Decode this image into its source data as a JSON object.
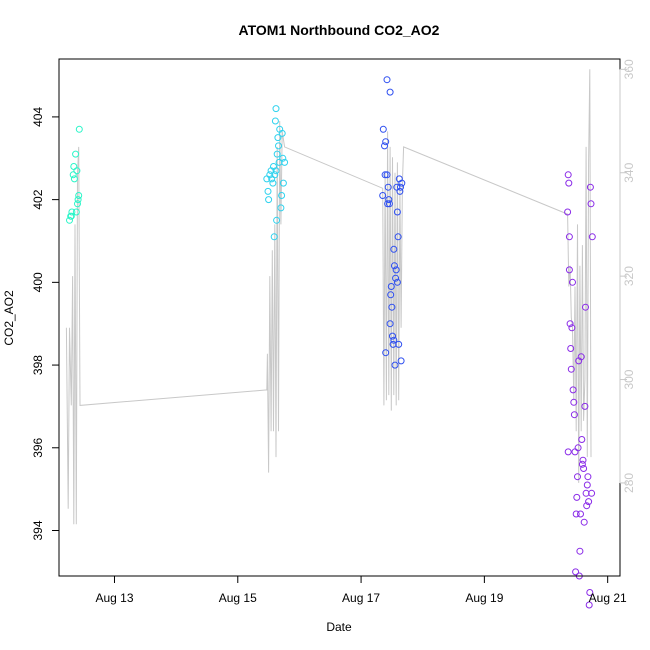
{
  "chart_data": {
    "type": "scatter",
    "title": "ATOM1 Northbound CO2_AO2",
    "xlabel": "Date",
    "ylabel": "CO2_AO2",
    "x_unit": "days (August, day-of-month)",
    "xlim": [
      12.1,
      21.2
    ],
    "x_ticks": [
      {
        "value": 13,
        "label": "Aug 13"
      },
      {
        "value": 15,
        "label": "Aug 15"
      },
      {
        "value": 17,
        "label": "Aug 17"
      },
      {
        "value": 19,
        "label": "Aug 19"
      },
      {
        "value": 21,
        "label": "Aug 21"
      }
    ],
    "ylim": [
      392.9,
      405.4
    ],
    "y_ticks": [
      394,
      396,
      398,
      400,
      402,
      404
    ],
    "y2lim": [
      262,
      362
    ],
    "y2_ticks": [
      280,
      300,
      320,
      340,
      360
    ],
    "grid": false,
    "colors": {
      "series_aug12": "#2af5c8",
      "series_aug15": "#2fd2ee",
      "series_aug17": "#2e4ff0",
      "series_aug20": "#8a2be8",
      "line": "#c8c8c8"
    },
    "series": [
      {
        "points": [
          [
            12.27,
            401.5
          ],
          [
            12.29,
            401.6
          ],
          [
            12.31,
            401.7
          ],
          [
            12.33,
            402.6
          ],
          [
            12.34,
            402.8
          ],
          [
            12.35,
            402.5
          ],
          [
            12.37,
            403.1
          ],
          [
            12.38,
            401.7
          ],
          [
            12.4,
            401.9
          ],
          [
            12.41,
            402.0
          ],
          [
            12.42,
            402.1
          ],
          [
            12.43,
            403.7
          ],
          [
            12.39,
            402.7
          ],
          [
            12.3,
            401.6
          ]
        ]
      },
      {
        "points": [
          [
            15.47,
            402.5
          ],
          [
            15.49,
            402.2
          ],
          [
            15.5,
            402.0
          ],
          [
            15.52,
            402.6
          ],
          [
            15.54,
            402.7
          ],
          [
            15.55,
            402.5
          ],
          [
            15.57,
            402.4
          ],
          [
            15.58,
            402.8
          ],
          [
            15.59,
            401.1
          ],
          [
            15.6,
            402.6
          ],
          [
            15.62,
            402.7
          ],
          [
            15.63,
            401.5
          ],
          [
            15.64,
            403.1
          ],
          [
            15.65,
            403.5
          ],
          [
            15.67,
            402.9
          ],
          [
            15.68,
            403.7
          ],
          [
            15.7,
            401.8
          ],
          [
            15.71,
            402.1
          ],
          [
            15.72,
            403.6
          ],
          [
            15.73,
            403.0
          ],
          [
            15.74,
            402.4
          ],
          [
            15.76,
            402.9
          ],
          [
            15.61,
            403.9
          ],
          [
            15.62,
            404.2
          ],
          [
            15.66,
            403.3
          ]
        ]
      },
      {
        "points": [
          [
            17.35,
            402.1
          ],
          [
            17.38,
            403.3
          ],
          [
            17.39,
            402.6
          ],
          [
            17.4,
            403.4
          ],
          [
            17.42,
            404.9
          ],
          [
            17.44,
            402.3
          ],
          [
            17.45,
            402.0
          ],
          [
            17.46,
            401.9
          ],
          [
            17.47,
            404.6
          ],
          [
            17.48,
            399.7
          ],
          [
            17.5,
            399.4
          ],
          [
            17.51,
            398.7
          ],
          [
            17.52,
            398.5
          ],
          [
            17.53,
            398.6
          ],
          [
            17.54,
            400.4
          ],
          [
            17.55,
            398.0
          ],
          [
            17.56,
            400.1
          ],
          [
            17.57,
            400.3
          ],
          [
            17.58,
            402.3
          ],
          [
            17.59,
            401.7
          ],
          [
            17.6,
            401.1
          ],
          [
            17.61,
            398.5
          ],
          [
            17.62,
            402.5
          ],
          [
            17.63,
            402.2
          ],
          [
            17.64,
            402.3
          ],
          [
            17.65,
            398.1
          ],
          [
            17.66,
            402.4
          ],
          [
            17.4,
            398.3
          ],
          [
            17.43,
            401.9
          ],
          [
            17.49,
            399.9
          ],
          [
            17.36,
            403.7
          ],
          [
            17.42,
            402.6
          ],
          [
            17.53,
            400.8
          ],
          [
            17.59,
            400.0
          ],
          [
            17.47,
            399.0
          ]
        ]
      },
      {
        "points": [
          [
            20.35,
            401.7
          ],
          [
            20.36,
            395.9
          ],
          [
            20.37,
            402.4
          ],
          [
            20.38,
            401.1
          ],
          [
            20.39,
            399.0
          ],
          [
            20.4,
            398.4
          ],
          [
            20.42,
            398.9
          ],
          [
            20.43,
            400.0
          ],
          [
            20.44,
            397.4
          ],
          [
            20.45,
            397.1
          ],
          [
            20.47,
            395.9
          ],
          [
            20.48,
            393.0
          ],
          [
            20.49,
            394.4
          ],
          [
            20.5,
            394.8
          ],
          [
            20.51,
            395.3
          ],
          [
            20.52,
            396.0
          ],
          [
            20.53,
            398.1
          ],
          [
            20.54,
            392.9
          ],
          [
            20.55,
            393.5
          ],
          [
            20.56,
            394.4
          ],
          [
            20.58,
            396.2
          ],
          [
            20.59,
            395.6
          ],
          [
            20.6,
            395.7
          ],
          [
            20.61,
            395.5
          ],
          [
            20.62,
            394.2
          ],
          [
            20.64,
            399.4
          ],
          [
            20.65,
            394.9
          ],
          [
            20.66,
            394.6
          ],
          [
            20.68,
            395.3
          ],
          [
            20.69,
            394.7
          ],
          [
            20.7,
            392.2
          ],
          [
            20.71,
            392.5
          ],
          [
            20.72,
            402.3
          ],
          [
            20.73,
            401.9
          ],
          [
            20.75,
            401.1
          ],
          [
            20.36,
            402.6
          ],
          [
            20.38,
            400.3
          ],
          [
            20.41,
            397.9
          ],
          [
            20.46,
            396.8
          ],
          [
            20.57,
            398.2
          ],
          [
            20.63,
            397.0
          ],
          [
            20.67,
            395.1
          ],
          [
            20.74,
            394.9
          ]
        ]
      }
    ],
    "line_series": {
      "axis": "right",
      "points": [
        [
          12.22,
          310
        ],
        [
          12.25,
          275
        ],
        [
          12.27,
          310
        ],
        [
          12.3,
          295
        ],
        [
          12.32,
          320
        ],
        [
          12.34,
          272
        ],
        [
          12.36,
          330
        ],
        [
          12.38,
          272
        ],
        [
          12.4,
          340
        ],
        [
          12.42,
          345
        ],
        [
          12.44,
          295
        ],
        [
          15.47,
          298
        ],
        [
          15.48,
          305
        ],
        [
          15.5,
          282
        ],
        [
          15.52,
          320
        ],
        [
          15.54,
          290
        ],
        [
          15.56,
          325
        ],
        [
          15.58,
          290
        ],
        [
          15.6,
          330
        ],
        [
          15.62,
          285
        ],
        [
          15.64,
          345
        ],
        [
          15.66,
          290
        ],
        [
          15.68,
          350
        ],
        [
          15.7,
          330
        ],
        [
          15.72,
          348
        ],
        [
          15.76,
          345
        ],
        [
          17.35,
          337
        ],
        [
          17.37,
          295
        ],
        [
          17.39,
          340
        ],
        [
          17.41,
          296
        ],
        [
          17.43,
          348
        ],
        [
          17.45,
          297
        ],
        [
          17.47,
          345
        ],
        [
          17.49,
          294
        ],
        [
          17.51,
          343
        ],
        [
          17.53,
          297
        ],
        [
          17.55,
          340
        ],
        [
          17.57,
          295
        ],
        [
          17.59,
          342
        ],
        [
          17.61,
          296
        ],
        [
          17.63,
          338
        ],
        [
          17.65,
          310
        ],
        [
          17.67,
          338
        ],
        [
          17.69,
          345
        ],
        [
          20.35,
          332
        ],
        [
          20.37,
          318
        ],
        [
          20.39,
          322
        ],
        [
          20.41,
          312
        ],
        [
          20.43,
          310
        ],
        [
          20.45,
          296
        ],
        [
          20.47,
          318
        ],
        [
          20.49,
          290
        ],
        [
          20.51,
          330
        ],
        [
          20.53,
          280
        ],
        [
          20.55,
          322
        ],
        [
          20.57,
          290
        ],
        [
          20.59,
          326
        ],
        [
          20.61,
          292
        ],
        [
          20.63,
          300
        ],
        [
          20.65,
          345
        ],
        [
          20.67,
          285
        ],
        [
          20.69,
          342
        ],
        [
          20.71,
          360
        ],
        [
          20.73,
          285
        ]
      ]
    }
  }
}
